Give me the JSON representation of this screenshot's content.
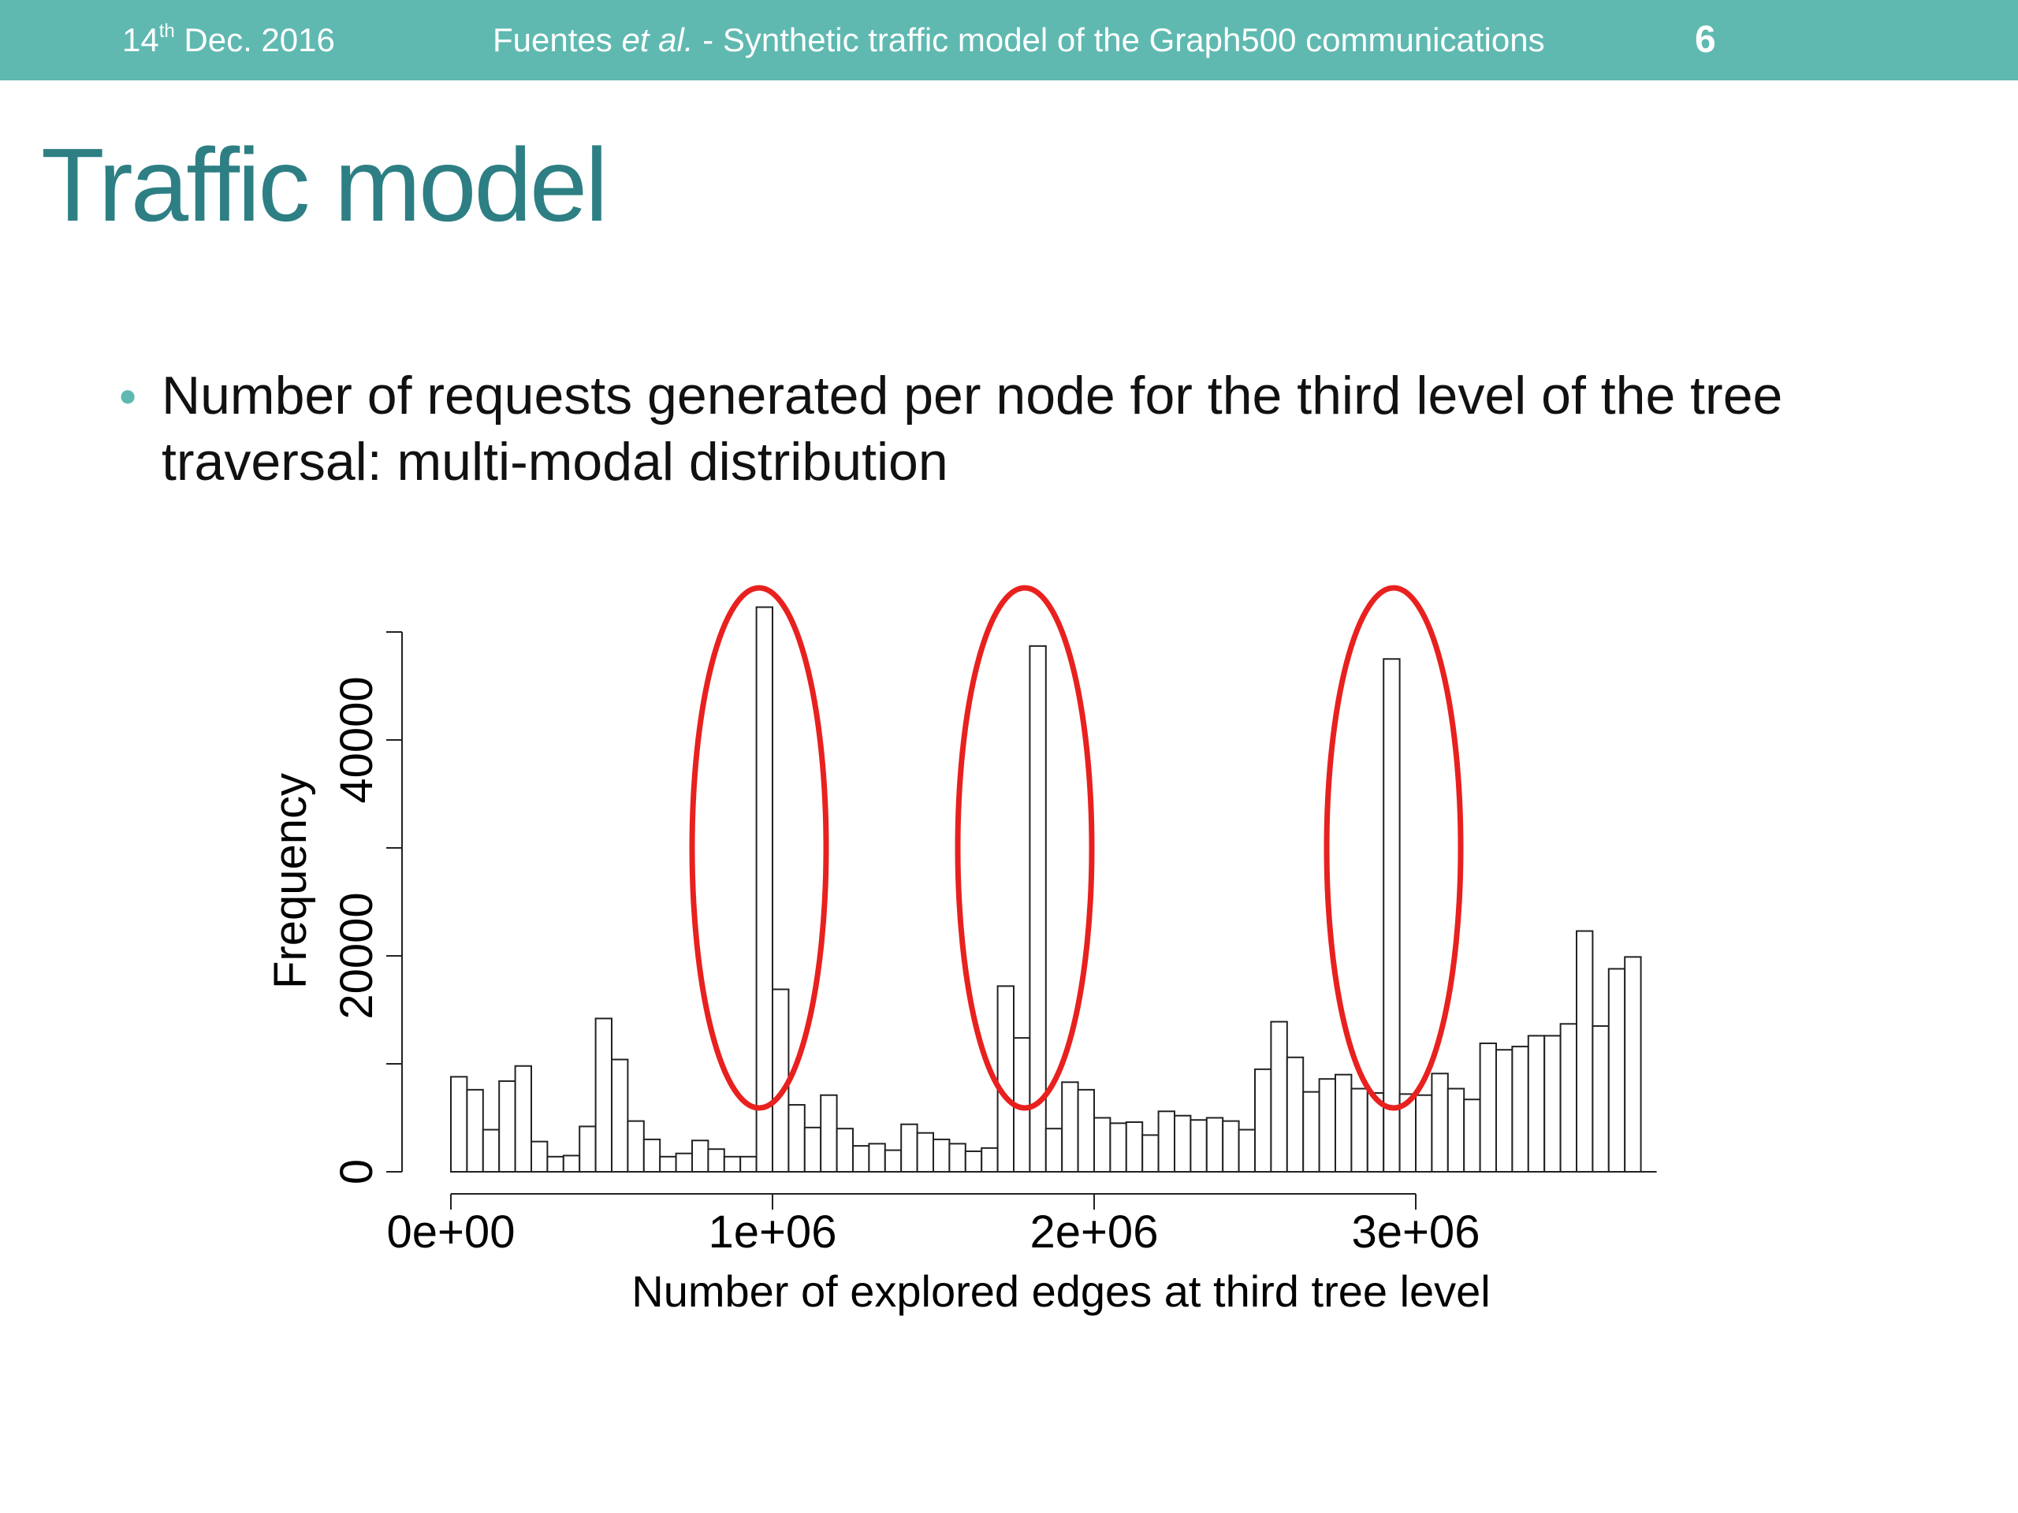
{
  "header": {
    "date_day": "14",
    "date_suffix": "th",
    "date_rest": " Dec. 2016",
    "citation_author": "Fuentes ",
    "citation_etal": "et al.",
    "citation_rest": " - Synthetic traffic model of the Graph500 communications",
    "page_number": "6"
  },
  "title": "Traffic model",
  "bullet": "Number of requests generated per node for the third level of the tree traversal: multi-modal distribution",
  "colors": {
    "header_bg": "#5fb9b1",
    "title": "#2d7f84",
    "highlight_ellipse": "#e8211f"
  },
  "chart_data": {
    "type": "bar",
    "subtype": "histogram",
    "xlabel": "Number of explored edges at third tree level",
    "ylabel": "Frequency",
    "x_ticks": [
      0,
      1000000,
      2000000,
      3000000
    ],
    "x_tick_labels": [
      "0e+00",
      "1e+06",
      "2e+06",
      "3e+06"
    ],
    "y_ticks": [
      0,
      10000,
      20000,
      30000,
      40000,
      50000
    ],
    "y_tick_labels": [
      "0",
      "",
      "20000",
      "",
      "40000",
      ""
    ],
    "xlim": [
      0,
      3800000
    ],
    "ylim": [
      0,
      50000
    ],
    "bin_width": 50000,
    "bin_start": 0,
    "values": [
      8800,
      7600,
      3900,
      8400,
      9800,
      2800,
      1400,
      1500,
      4200,
      14200,
      10400,
      4700,
      3000,
      1400,
      1700,
      2900,
      2100,
      1400,
      1400,
      52300,
      16900,
      6200,
      4100,
      7100,
      4000,
      2400,
      2600,
      2000,
      4400,
      3600,
      3000,
      2600,
      1900,
      2200,
      17200,
      12400,
      48700,
      4000,
      8300,
      7600,
      5000,
      4500,
      4600,
      3400,
      5600,
      5200,
      4800,
      5000,
      4700,
      3900,
      9500,
      13900,
      10600,
      7400,
      8600,
      9000,
      7700,
      7300,
      47500,
      7200,
      7100,
      9100,
      7700,
      6700,
      11900,
      11300,
      11600,
      12600,
      12600,
      13700,
      22300,
      13500,
      18800,
      19900
    ],
    "highlighted_peaks": [
      1000000,
      1800000,
      2950000
    ],
    "grid": false,
    "legend": "none"
  }
}
